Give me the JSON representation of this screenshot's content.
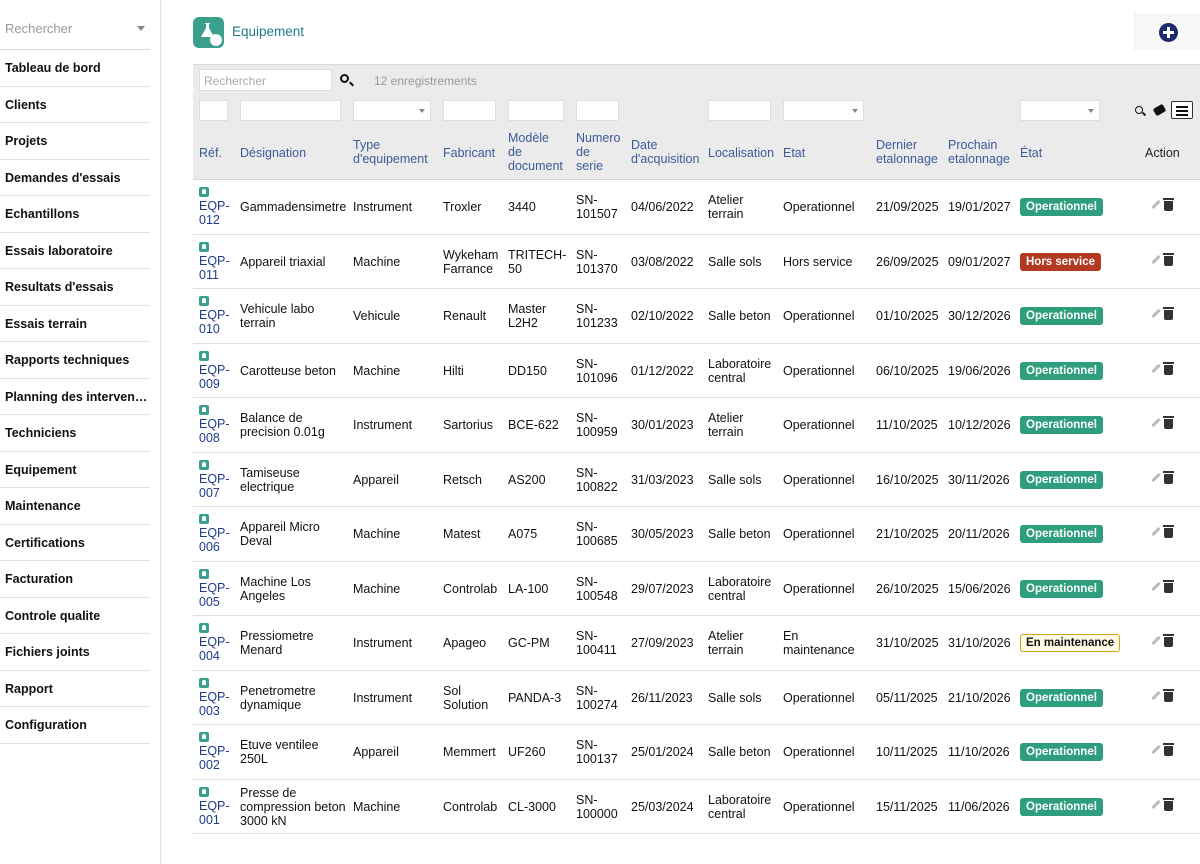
{
  "sidebar": {
    "search_placeholder": "Rechercher",
    "items": [
      {
        "label": "Tableau de bord"
      },
      {
        "label": "Clients"
      },
      {
        "label": "Projets"
      },
      {
        "label": "Demandes d'essais"
      },
      {
        "label": "Echantillons"
      },
      {
        "label": "Essais laboratoire"
      },
      {
        "label": "Resultats d'essais"
      },
      {
        "label": "Essais terrain"
      },
      {
        "label": "Rapports techniques"
      },
      {
        "label": "Planning des interventions"
      },
      {
        "label": "Techniciens"
      },
      {
        "label": "Equipement"
      },
      {
        "label": "Maintenance"
      },
      {
        "label": "Certifications"
      },
      {
        "label": "Facturation"
      },
      {
        "label": "Controle qualite"
      },
      {
        "label": "Fichiers joints"
      },
      {
        "label": "Rapport"
      },
      {
        "label": "Configuration"
      }
    ]
  },
  "header": {
    "title": "Equipement",
    "icon": "flask-icon"
  },
  "toolbar": {
    "search_placeholder": "Rechercher",
    "count_text": "12 enregistrements"
  },
  "columns": {
    "ref": "Réf.",
    "designation": "Désignation",
    "type_l1": "Type",
    "type_l2": "d'equipement",
    "fabricant": "Fabricant",
    "modele_l1": "Modèle",
    "modele_l2": "de",
    "modele_l3": "document",
    "numero_l1": "Numero",
    "numero_l2": "de",
    "numero_l3": "serie",
    "date_l1": "Date",
    "date_l2": "d'acquisition",
    "localisation": "Localisation",
    "etat": "Etat",
    "dernier_l1": "Dernier",
    "dernier_l2": "etalonnage",
    "prochain_l1": "Prochain",
    "prochain_l2": "etalonnage",
    "etat2": "État",
    "action": "Action"
  },
  "colors": {
    "operationnel": "#2e9e7c",
    "hors_service": "#b23a22",
    "maintenance_border": "#c9a51b",
    "link": "#1f3b8c"
  },
  "rows": [
    {
      "ref1": "EQP-",
      "ref2": "012",
      "des1": "Gammadensimetre",
      "des2": "",
      "des3": "",
      "type": "Instrument",
      "fab1": "Troxler",
      "fab2": "",
      "mod1": "3440",
      "mod2": "",
      "sn1": "SN-",
      "sn2": "101507",
      "date": "04/06/2022",
      "loc1": "Atelier",
      "loc2": "terrain",
      "etat1": "Operationnel",
      "etat2": "",
      "dernier": "21/09/2025",
      "prochain": "19/01/2027",
      "badge": "Operationnel",
      "badge_kind": "op"
    },
    {
      "ref1": "EQP-",
      "ref2": "011",
      "des1": "Appareil triaxial",
      "des2": "",
      "des3": "",
      "type": "Machine",
      "fab1": "Wykeham",
      "fab2": "Farrance",
      "mod1": "TRITECH-",
      "mod2": "50",
      "sn1": "SN-",
      "sn2": "101370",
      "date": "03/08/2022",
      "loc1": "Salle sols",
      "loc2": "",
      "etat1": "Hors service",
      "etat2": "",
      "dernier": "26/09/2025",
      "prochain": "09/01/2027",
      "badge": "Hors service",
      "badge_kind": "hs"
    },
    {
      "ref1": "EQP-",
      "ref2": "010",
      "des1": "Vehicule labo",
      "des2": "terrain",
      "des3": "",
      "type": "Vehicule",
      "fab1": "Renault",
      "fab2": "",
      "mod1": "Master",
      "mod2": "L2H2",
      "sn1": "SN-",
      "sn2": "101233",
      "date": "02/10/2022",
      "loc1": "Salle beton",
      "loc2": "",
      "etat1": "Operationnel",
      "etat2": "",
      "dernier": "01/10/2025",
      "prochain": "30/12/2026",
      "badge": "Operationnel",
      "badge_kind": "op"
    },
    {
      "ref1": "EQP-",
      "ref2": "009",
      "des1": "Carotteuse beton",
      "des2": "",
      "des3": "",
      "type": "Machine",
      "fab1": "Hilti",
      "fab2": "",
      "mod1": "DD150",
      "mod2": "",
      "sn1": "SN-",
      "sn2": "101096",
      "date": "01/12/2022",
      "loc1": "Laboratoire",
      "loc2": "central",
      "etat1": "Operationnel",
      "etat2": "",
      "dernier": "06/10/2025",
      "prochain": "19/06/2026",
      "badge": "Operationnel",
      "badge_kind": "op"
    },
    {
      "ref1": "EQP-",
      "ref2": "008",
      "des1": "Balance de",
      "des2": "precision 0.01g",
      "des3": "",
      "type": "Instrument",
      "fab1": "Sartorius",
      "fab2": "",
      "mod1": "BCE-622",
      "mod2": "",
      "sn1": "SN-",
      "sn2": "100959",
      "date": "30/01/2023",
      "loc1": "Atelier",
      "loc2": "terrain",
      "etat1": "Operationnel",
      "etat2": "",
      "dernier": "11/10/2025",
      "prochain": "10/12/2026",
      "badge": "Operationnel",
      "badge_kind": "op"
    },
    {
      "ref1": "EQP-",
      "ref2": "007",
      "des1": "Tamiseuse",
      "des2": "electrique",
      "des3": "",
      "type": "Appareil",
      "fab1": "Retsch",
      "fab2": "",
      "mod1": "AS200",
      "mod2": "",
      "sn1": "SN-",
      "sn2": "100822",
      "date": "31/03/2023",
      "loc1": "Salle sols",
      "loc2": "",
      "etat1": "Operationnel",
      "etat2": "",
      "dernier": "16/10/2025",
      "prochain": "30/11/2026",
      "badge": "Operationnel",
      "badge_kind": "op"
    },
    {
      "ref1": "EQP-",
      "ref2": "006",
      "des1": "Appareil Micro",
      "des2": "Deval",
      "des3": "",
      "type": "Machine",
      "fab1": "Matest",
      "fab2": "",
      "mod1": "A075",
      "mod2": "",
      "sn1": "SN-",
      "sn2": "100685",
      "date": "30/05/2023",
      "loc1": "Salle beton",
      "loc2": "",
      "etat1": "Operationnel",
      "etat2": "",
      "dernier": "21/10/2025",
      "prochain": "20/11/2026",
      "badge": "Operationnel",
      "badge_kind": "op"
    },
    {
      "ref1": "EQP-",
      "ref2": "005",
      "des1": "Machine Los",
      "des2": "Angeles",
      "des3": "",
      "type": "Machine",
      "fab1": "Controlab",
      "fab2": "",
      "mod1": "LA-100",
      "mod2": "",
      "sn1": "SN-",
      "sn2": "100548",
      "date": "29/07/2023",
      "loc1": "Laboratoire",
      "loc2": "central",
      "etat1": "Operationnel",
      "etat2": "",
      "dernier": "26/10/2025",
      "prochain": "15/06/2026",
      "badge": "Operationnel",
      "badge_kind": "op"
    },
    {
      "ref1": "EQP-",
      "ref2": "004",
      "des1": "Pressiometre",
      "des2": "Menard",
      "des3": "",
      "type": "Instrument",
      "fab1": "Apageo",
      "fab2": "",
      "mod1": "GC-PM",
      "mod2": "",
      "sn1": "SN-",
      "sn2": "100411",
      "date": "27/09/2023",
      "loc1": "Atelier",
      "loc2": "terrain",
      "etat1": "En",
      "etat2": "maintenance",
      "dernier": "31/10/2025",
      "prochain": "31/10/2026",
      "badge": "En maintenance",
      "badge_kind": "mt"
    },
    {
      "ref1": "EQP-",
      "ref2": "003",
      "des1": "Penetrometre",
      "des2": "dynamique",
      "des3": "",
      "type": "Instrument",
      "fab1": "Sol",
      "fab2": "Solution",
      "mod1": "PANDA-3",
      "mod2": "",
      "sn1": "SN-",
      "sn2": "100274",
      "date": "26/11/2023",
      "loc1": "Salle sols",
      "loc2": "",
      "etat1": "Operationnel",
      "etat2": "",
      "dernier": "05/11/2025",
      "prochain": "21/10/2026",
      "badge": "Operationnel",
      "badge_kind": "op"
    },
    {
      "ref1": "EQP-",
      "ref2": "002",
      "des1": "Etuve ventilee",
      "des2": "250L",
      "des3": "",
      "type": "Appareil",
      "fab1": "Memmert",
      "fab2": "",
      "mod1": "UF260",
      "mod2": "",
      "sn1": "SN-",
      "sn2": "100137",
      "date": "25/01/2024",
      "loc1": "Salle beton",
      "loc2": "",
      "etat1": "Operationnel",
      "etat2": "",
      "dernier": "10/11/2025",
      "prochain": "11/10/2026",
      "badge": "Operationnel",
      "badge_kind": "op"
    },
    {
      "ref1": "EQP-",
      "ref2": "001",
      "des1": "Presse de",
      "des2": "compression beton",
      "des3": "3000 kN",
      "type": "Machine",
      "fab1": "Controlab",
      "fab2": "",
      "mod1": "CL-3000",
      "mod2": "",
      "sn1": "SN-",
      "sn2": "100000",
      "date": "25/03/2024",
      "loc1": "Laboratoire",
      "loc2": "central",
      "etat1": "Operationnel",
      "etat2": "",
      "dernier": "15/11/2025",
      "prochain": "11/06/2026",
      "badge": "Operationnel",
      "badge_kind": "op"
    }
  ]
}
